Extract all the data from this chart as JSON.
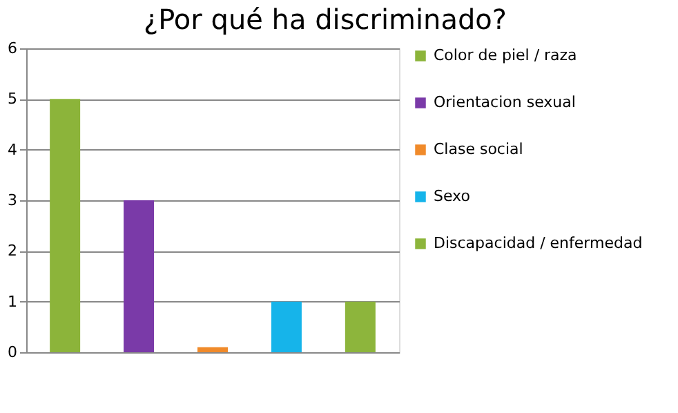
{
  "chart_data": {
    "type": "bar",
    "title": "¿Por qué ha discriminado?",
    "categories": [
      null,
      null,
      null,
      null,
      null
    ],
    "series": [
      {
        "name": "Color de piel / raza",
        "color": "#8cb43a",
        "values": [
          5,
          null,
          null,
          null,
          null
        ]
      },
      {
        "name": "Orientacion sexual",
        "color": "#7a3aa8",
        "values": [
          null,
          3,
          null,
          null,
          null
        ]
      },
      {
        "name": "Clase social",
        "color": "#f08a2a",
        "values": [
          null,
          null,
          0.1,
          null,
          null
        ]
      },
      {
        "name": "Sexo",
        "color": "#16b4ea",
        "values": [
          null,
          null,
          null,
          1,
          null
        ]
      },
      {
        "name": "Discapacidad / enfermedad",
        "color": "#8db53c",
        "values": [
          null,
          null,
          null,
          null,
          1
        ]
      }
    ],
    "ylim": [
      0,
      6
    ],
    "yticks": [
      0,
      1,
      2,
      3,
      4,
      5,
      6
    ],
    "grid": "y",
    "legend": "right",
    "tick_labels": "y"
  }
}
